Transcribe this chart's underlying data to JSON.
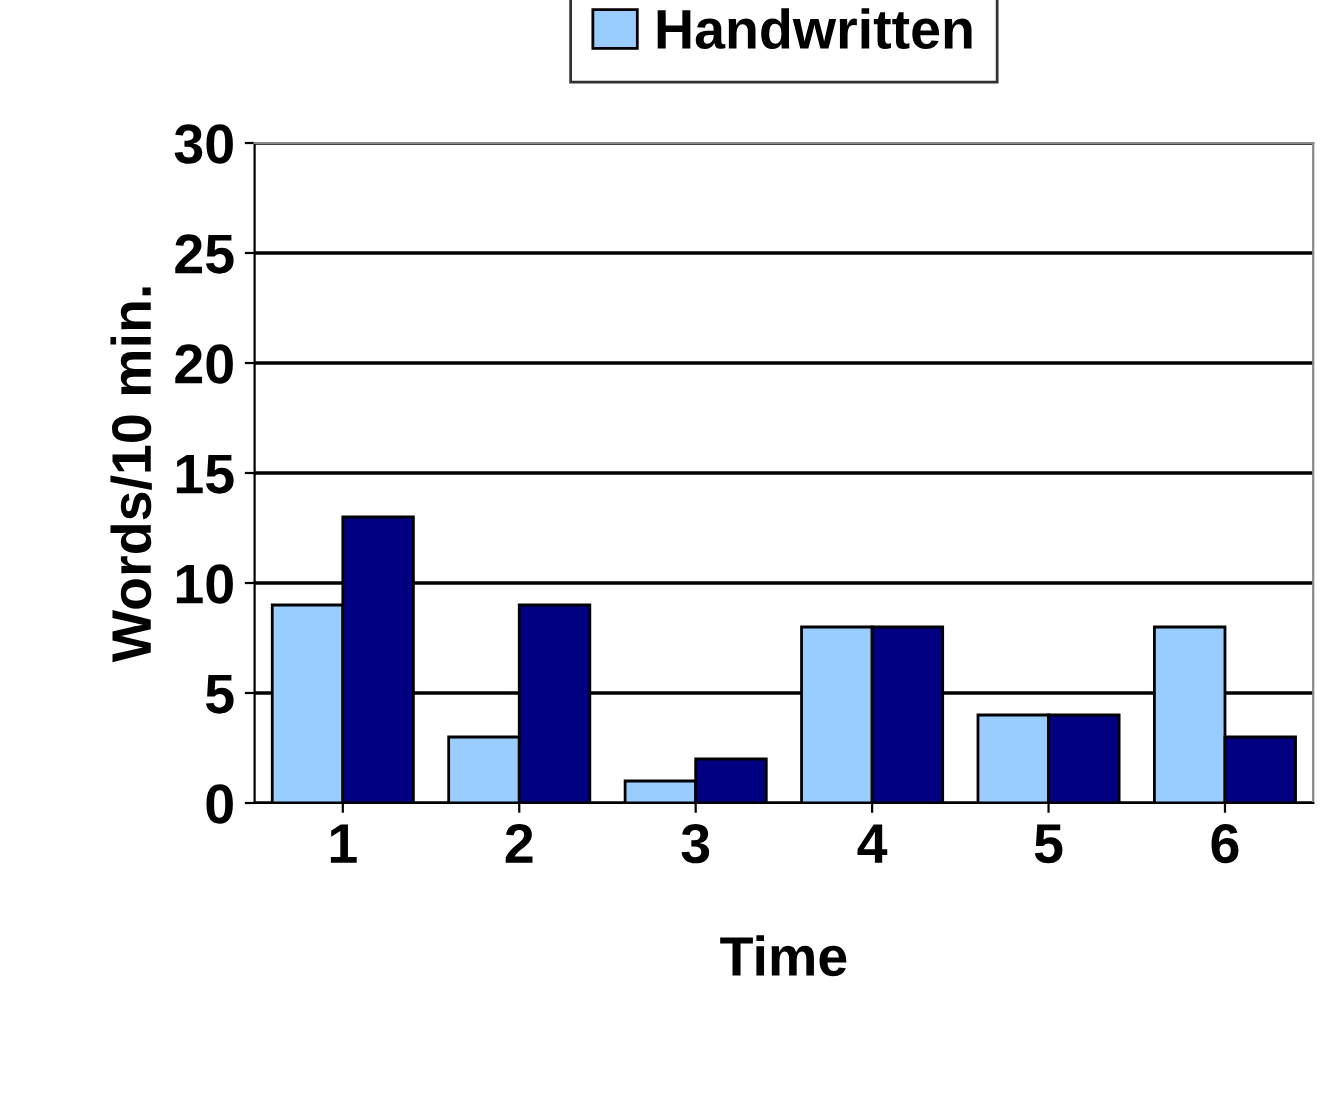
{
  "chart_data": {
    "type": "bar",
    "xlabel": "Time",
    "ylabel": "Words/10 min.",
    "categories": [
      "1",
      "2",
      "3",
      "4",
      "5",
      "6"
    ],
    "series": [
      {
        "name": "Handwritten",
        "color": "#99ccff",
        "values": [
          9,
          3,
          1,
          8,
          4,
          8
        ]
      },
      {
        "color": "#000080",
        "values": [
          13,
          9,
          2,
          8,
          4,
          3
        ]
      }
    ],
    "ylim": [
      0,
      30
    ],
    "yticks": [
      0,
      5,
      10,
      15,
      20,
      25,
      30
    ],
    "grid": "y",
    "legend": "top"
  }
}
